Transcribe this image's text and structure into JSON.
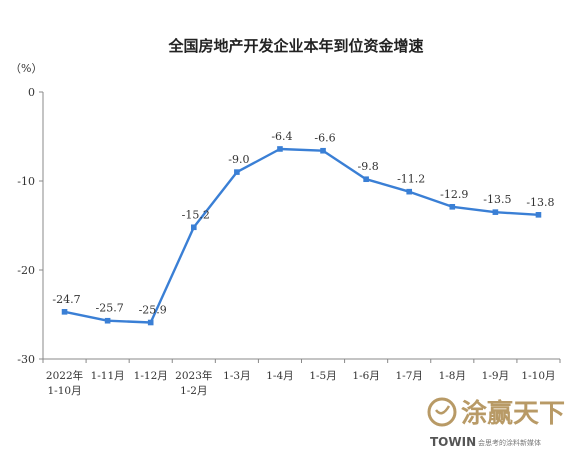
{
  "chart_data": {
    "type": "line",
    "title": "全国房地产开发企业本年到位资金增速",
    "unit_label": "（%）",
    "ylim": [
      -30,
      0
    ],
    "yticks": [
      0,
      -10,
      -20,
      -30
    ],
    "categories": [
      [
        "2022年",
        "1-10月"
      ],
      [
        "1-11月"
      ],
      [
        "1-12月"
      ],
      [
        "2023年",
        "1-2月"
      ],
      [
        "1-3月"
      ],
      [
        "1-4月"
      ],
      [
        "1-5月"
      ],
      [
        "1-6月"
      ],
      [
        "1-7月"
      ],
      [
        "1-8月"
      ],
      [
        "1-9月"
      ],
      [
        "1-10月"
      ]
    ],
    "values": [
      -24.7,
      -25.7,
      -25.9,
      -15.2,
      -9.0,
      -6.4,
      -6.6,
      -9.8,
      -11.2,
      -12.9,
      -13.5,
      -13.8
    ],
    "data_labels": [
      "-24.7",
      "-25.7",
      "-25.9",
      "-15.2",
      "-9.0",
      "-6.4",
      "-6.6",
      "-9.8",
      "-11.2",
      "-12.9",
      "-13.5",
      "-13.8"
    ],
    "line_color": "#3a7fd5",
    "grid": false,
    "legend": "none"
  },
  "watermark": {
    "text_cn": "涂赢天下",
    "text_en": "TOWIN",
    "subtext": "会思考的涂料新媒体",
    "color": "#b89a66"
  }
}
